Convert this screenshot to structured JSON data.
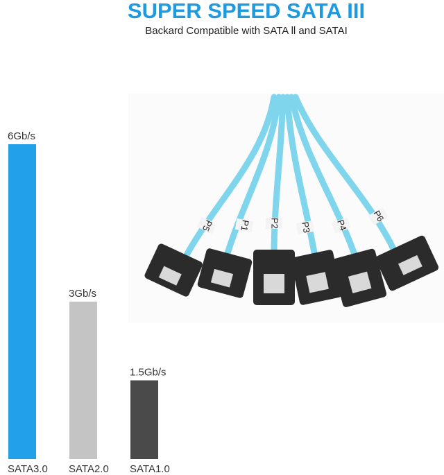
{
  "chart_data": {
    "type": "bar",
    "title": "SUPER SPEED SATA III",
    "subtitle": "Backard Compatible with SATA ll and SATAI",
    "categories": [
      "SATA3.0",
      "SATA2.0",
      "SATA1.0"
    ],
    "values": [
      6,
      3,
      1.5
    ],
    "value_labels": [
      "6Gb/s",
      "3Gb/s",
      "1.5Gb/s"
    ],
    "colors": [
      "#22a0ea",
      "#c4c4c4",
      "#4a4a4a"
    ],
    "title_color": "#1e9be0"
  },
  "photo": {
    "labels": [
      "P5",
      "P1",
      "P2",
      "P3",
      "P4",
      "P6"
    ]
  }
}
